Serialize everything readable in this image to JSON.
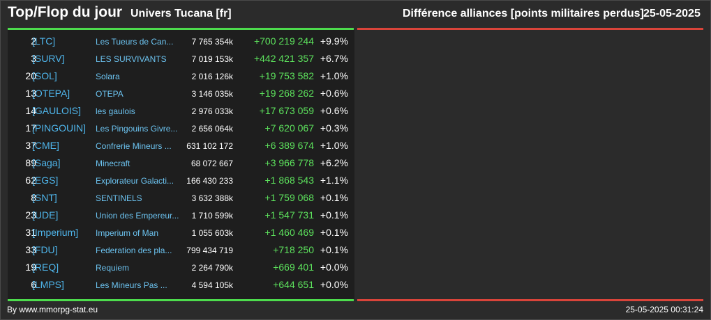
{
  "header": {
    "title": "Top/Flop du jour",
    "universe": "Univers Tucana [fr]",
    "metric": "Différence alliances [points militaires perdus]",
    "date": "25-05-2025"
  },
  "colors": {
    "background": "#2b2b2b",
    "panel": "#1e1e1e",
    "top_bar": "#4ddc4d",
    "flop_bar": "#d9443a",
    "tag": "#4fb6ec",
    "diff_positive": "#5de35d"
  },
  "rows": [
    {
      "rank": "2",
      "tag": "[LTC]",
      "name": "Les Tueurs de Can...",
      "points": "7 765 354k",
      "diff": "+700 219 244",
      "pct": "+9.9%"
    },
    {
      "rank": "3",
      "tag": "[SURV]",
      "name": "LES SURVIVANTS",
      "points": "7 019 153k",
      "diff": "+442 421 357",
      "pct": "+6.7%"
    },
    {
      "rank": "20",
      "tag": "[SOL]",
      "name": "Solara",
      "points": "2 016 126k",
      "diff": "+19 753 582",
      "pct": "+1.0%"
    },
    {
      "rank": "13",
      "tag": "[OTEPA]",
      "name": "OTEPA",
      "points": "3 146 035k",
      "diff": "+19 268 262",
      "pct": "+0.6%"
    },
    {
      "rank": "14",
      "tag": "[GAULOIS]",
      "name": "les gaulois",
      "points": "2 976 033k",
      "diff": "+17 673 059",
      "pct": "+0.6%"
    },
    {
      "rank": "17",
      "tag": "[PINGOUIN]",
      "name": "Les Pingouins Givre...",
      "points": "2 656 064k",
      "diff": "+7 620 067",
      "pct": "+0.3%"
    },
    {
      "rank": "37",
      "tag": "[CME]",
      "name": "Confrerie Mineurs ...",
      "points": "631 102 172",
      "diff": "+6 389 674",
      "pct": "+1.0%"
    },
    {
      "rank": "89",
      "tag": "[Saga]",
      "name": "Minecraft",
      "points": "68 072 667",
      "diff": "+3 966 778",
      "pct": "+6.2%"
    },
    {
      "rank": "62",
      "tag": "[EGS]",
      "name": "Explorateur Galacti...",
      "points": "166 430 233",
      "diff": "+1 868 543",
      "pct": "+1.1%"
    },
    {
      "rank": "8",
      "tag": "[SNT]",
      "name": "SENTINELS",
      "points": "3 632 388k",
      "diff": "+1 759 068",
      "pct": "+0.1%"
    },
    {
      "rank": "23",
      "tag": "[UDE]",
      "name": "Union des Empereur...",
      "points": "1 710 599k",
      "diff": "+1 547 731",
      "pct": "+0.1%"
    },
    {
      "rank": "31",
      "tag": "[Imperium]",
      "name": "Imperium of Man",
      "points": "1 055 603k",
      "diff": "+1 460 469",
      "pct": "+0.1%"
    },
    {
      "rank": "33",
      "tag": "[FDU]",
      "name": "Federation des pla...",
      "points": "799 434 719",
      "diff": "+718 250",
      "pct": "+0.1%"
    },
    {
      "rank": "19",
      "tag": "[REQ]",
      "name": "Requiem",
      "points": "2 264 790k",
      "diff": "+669 401",
      "pct": "+0.0%"
    },
    {
      "rank": "6",
      "tag": "[LMPS]",
      "name": "Les Mineurs Pas ...",
      "points": "4 594 105k",
      "diff": "+644 651",
      "pct": "+0.0%"
    }
  ],
  "footer": {
    "credit": "By www.mmorpg-stat.eu",
    "timestamp": "25-05-2025 00:31:24"
  }
}
